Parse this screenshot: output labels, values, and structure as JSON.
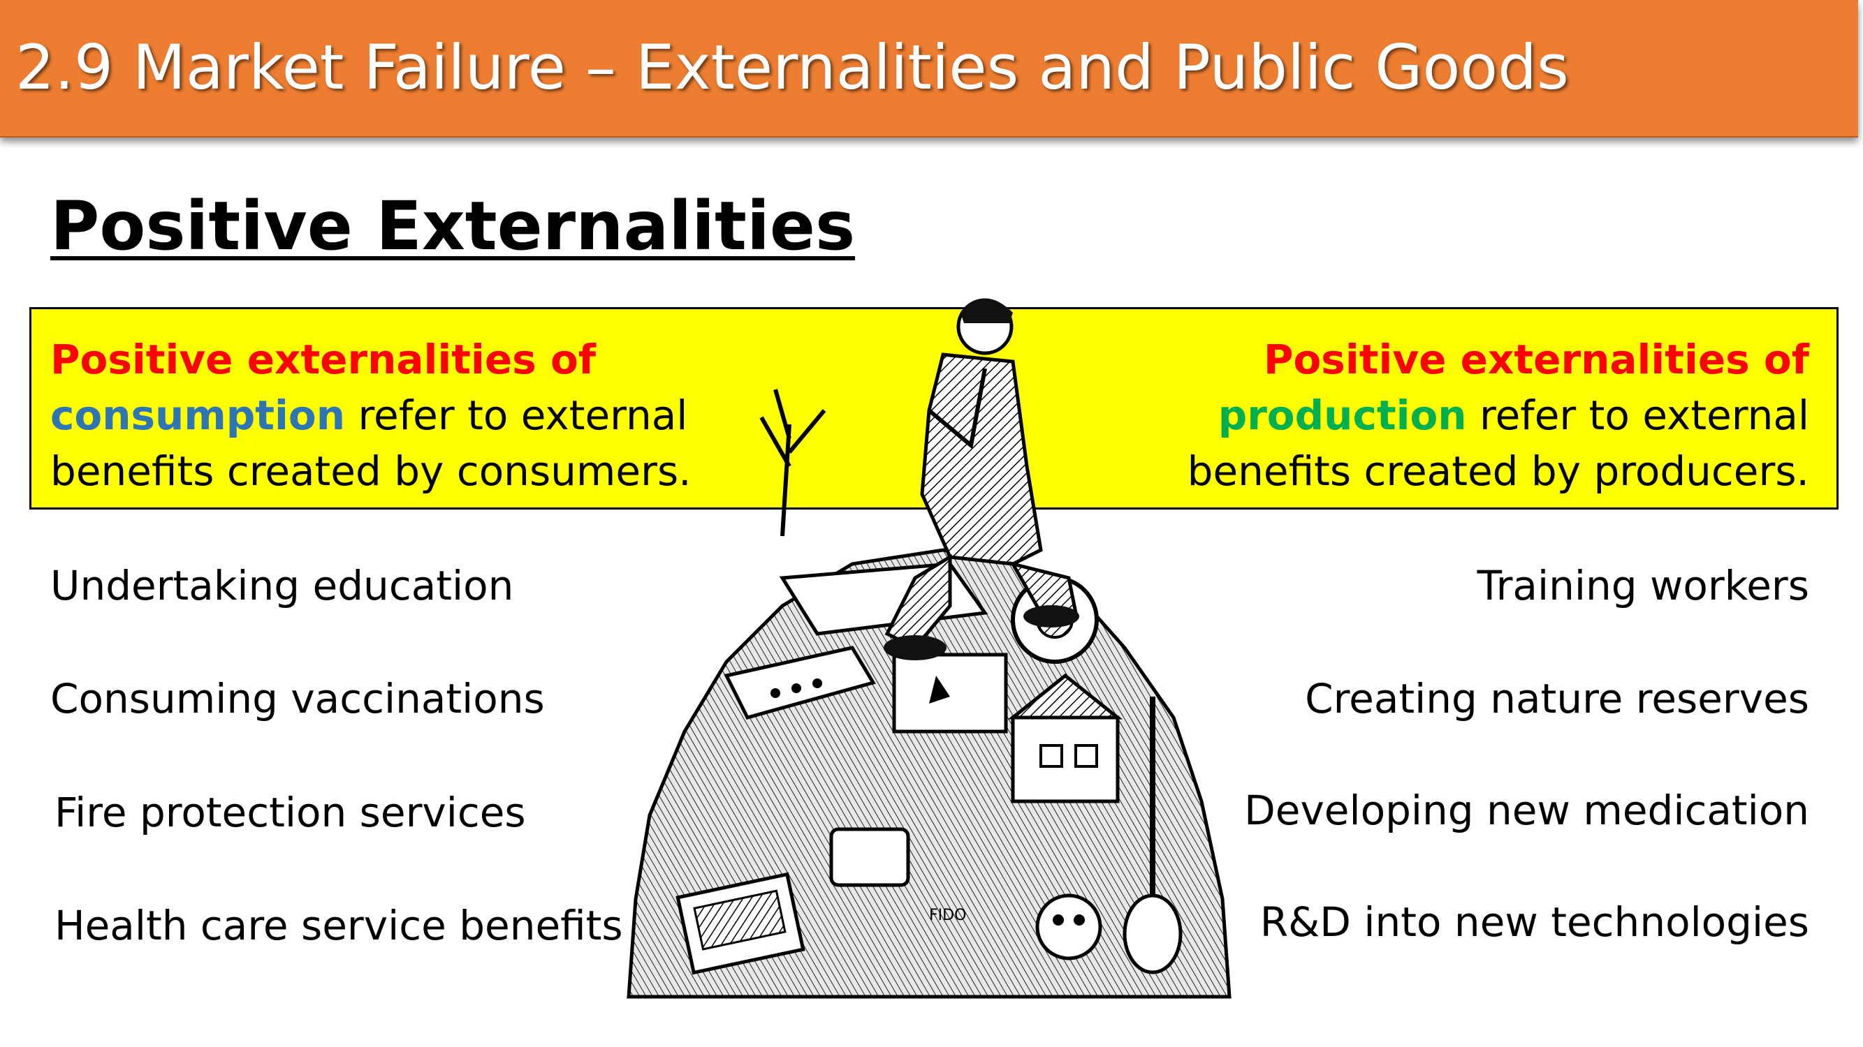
{
  "slide": {
    "title": "2.9 Market Failure – Externalities and Public Goods",
    "heading": "Positive Externalities"
  },
  "definitions": {
    "consumption": {
      "lead": "Positive externalities of",
      "keyword": "consumption",
      "rest_line1": " refer to external",
      "line2": "benefits created by consumers."
    },
    "production": {
      "lead": "Positive externalities of",
      "keyword": "production",
      "rest_line1": " refer to external",
      "line2": "benefits created by producers."
    }
  },
  "examples": {
    "consumption": [
      "Undertaking education",
      "Consuming vaccinations",
      "Fire protection services",
      "Health care service benefits"
    ],
    "production": [
      "Training workers",
      "Creating nature reserves",
      "Developing new medication",
      "R&D into new technologies"
    ]
  },
  "colors": {
    "title_bar": "#ed7d31",
    "highlight": "#ffff00",
    "lead_text": "#ff0000",
    "consumption_keyword": "#2e75b6",
    "production_keyword": "#00b050"
  }
}
